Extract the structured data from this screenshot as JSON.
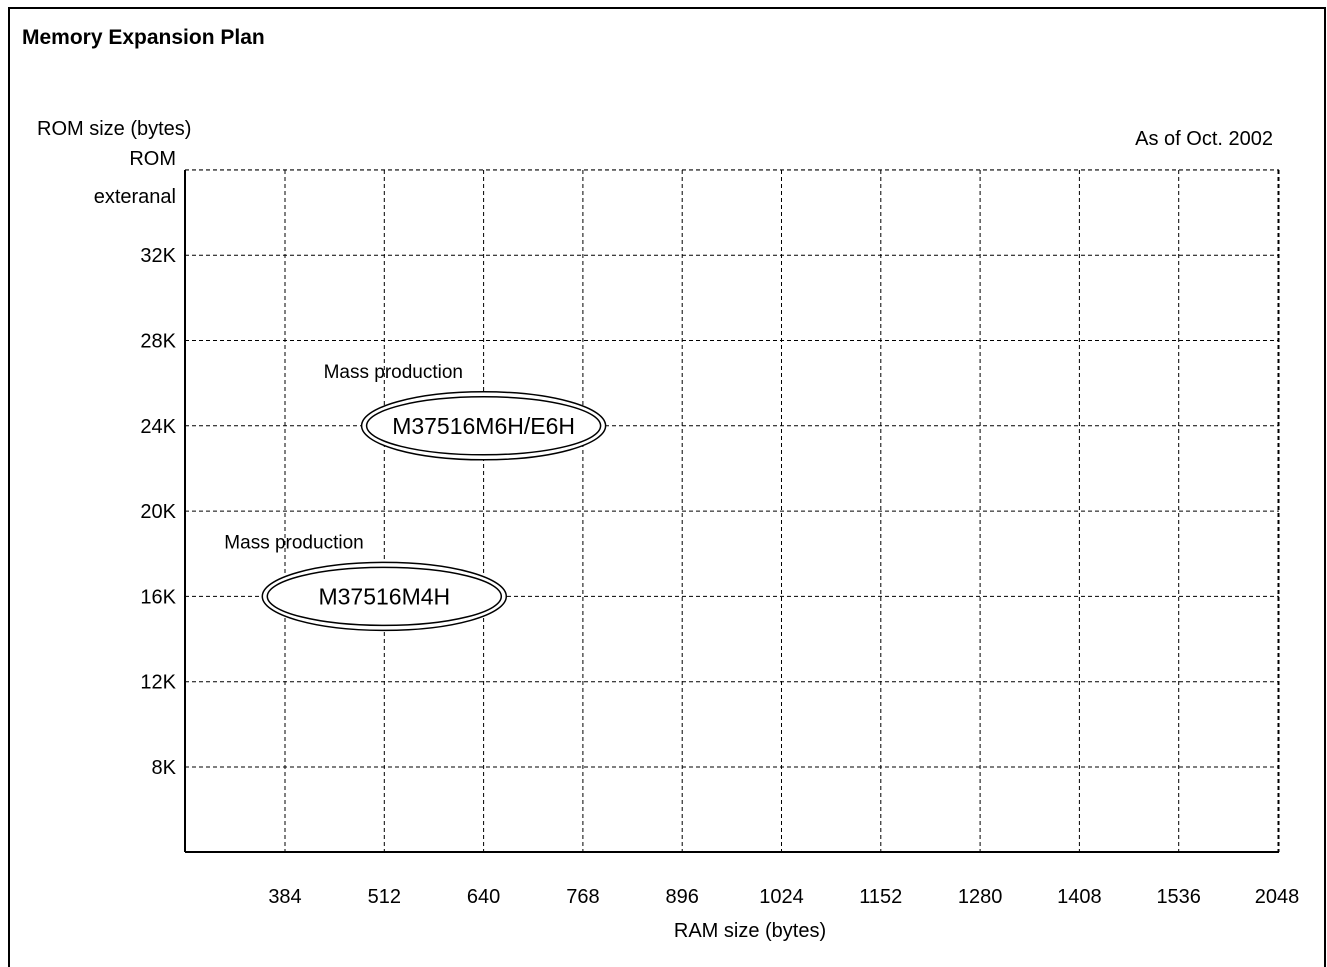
{
  "chart_data": {
    "type": "scatter",
    "title": "Memory Expansion Plan",
    "annotation": "As of Oct. 2002",
    "xlabel": "RAM size (bytes)",
    "ylabel": "ROM size (bytes)",
    "x_categories": [
      "384",
      "512",
      "640",
      "768",
      "896",
      "1024",
      "1152",
      "1280",
      "1408",
      "1536",
      "2048"
    ],
    "y_categories": [
      "8K",
      "12K",
      "16K",
      "20K",
      "24K",
      "28K",
      "32K",
      "ROM exteranal"
    ],
    "grid": true,
    "points": [
      {
        "label": "M37516M6H/E6H",
        "status": "Mass production",
        "x": "640",
        "y": "24K"
      },
      {
        "label": "M37516M4H",
        "status": "Mass production",
        "x": "512",
        "y": "16K"
      }
    ]
  }
}
